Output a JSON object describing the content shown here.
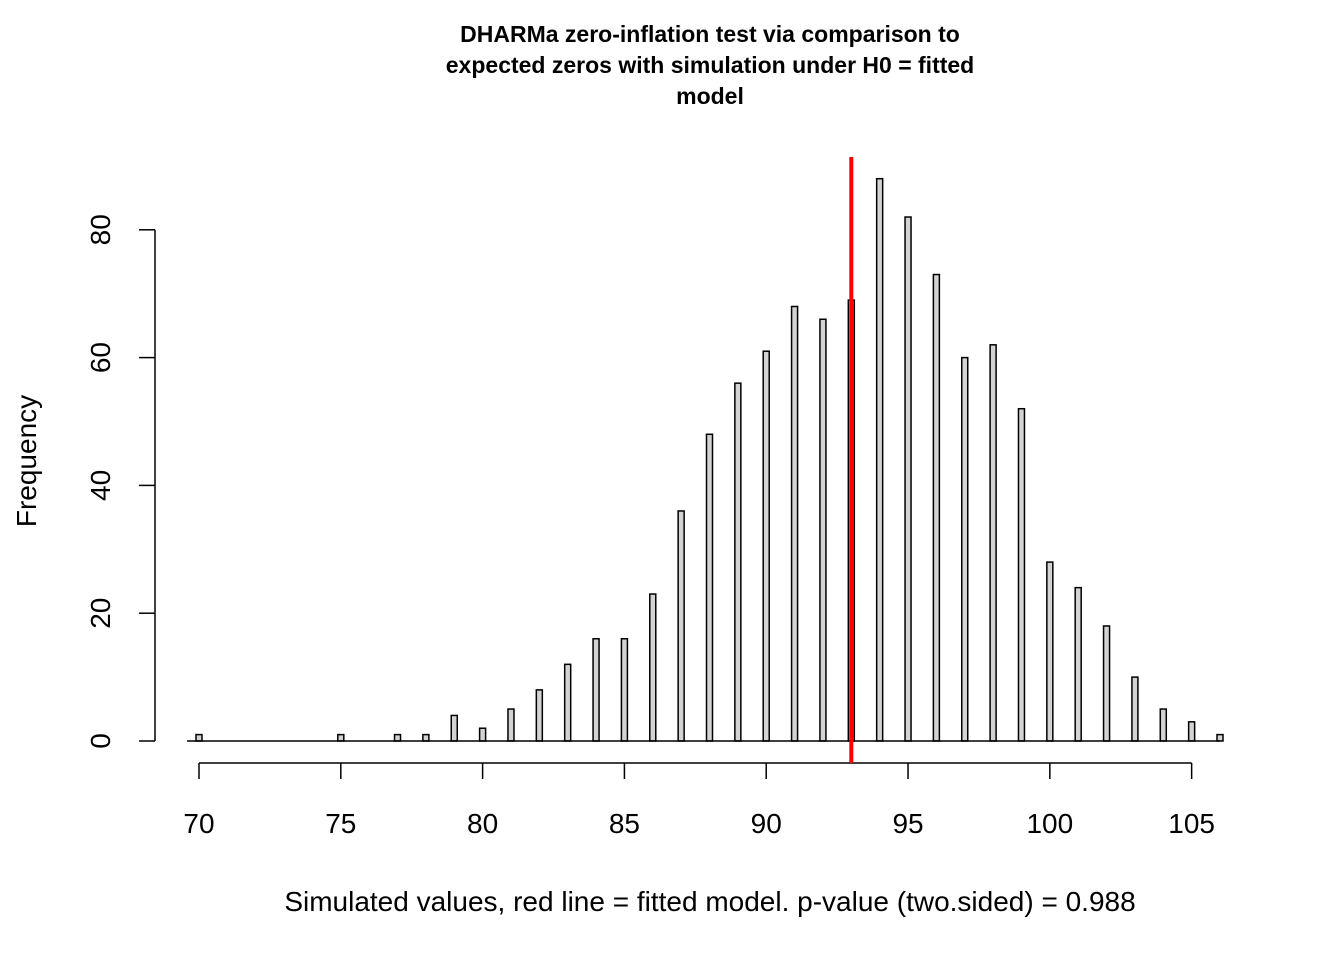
{
  "chart_data": {
    "type": "bar",
    "title_lines": [
      "DHARMa zero-inflation test via comparison to",
      "expected zeros with simulation under H0 = fitted",
      "model"
    ],
    "xlabel": "Simulated values, red line = fitted model. p-value (two.sided) = 0.988",
    "ylabel": "Frequency",
    "x": [
      70,
      75,
      77,
      78,
      79,
      80,
      81,
      82,
      83,
      84,
      85,
      86,
      87,
      88,
      89,
      90,
      91,
      92,
      93,
      94,
      95,
      96,
      97,
      98,
      99,
      100,
      101,
      102,
      103,
      104,
      105,
      106
    ],
    "values": [
      1,
      1,
      1,
      1,
      4,
      2,
      5,
      8,
      12,
      16,
      16,
      23,
      36,
      48,
      56,
      61,
      68,
      66,
      69,
      88,
      82,
      73,
      60,
      62,
      52,
      28,
      24,
      18,
      10,
      5,
      3,
      1
    ],
    "xlim": [
      70,
      106
    ],
    "ylim": [
      0,
      90
    ],
    "x_ticks": [
      "70",
      "75",
      "80",
      "85",
      "90",
      "95",
      "100",
      "105"
    ],
    "y_ticks": [
      "0",
      "20",
      "40",
      "60",
      "80"
    ],
    "observed_value": 93,
    "observed_line_color": "#ff0000",
    "bar_fill": "#d3d3d3",
    "bar_stroke": "#000000",
    "grid": false,
    "legend": "none"
  }
}
